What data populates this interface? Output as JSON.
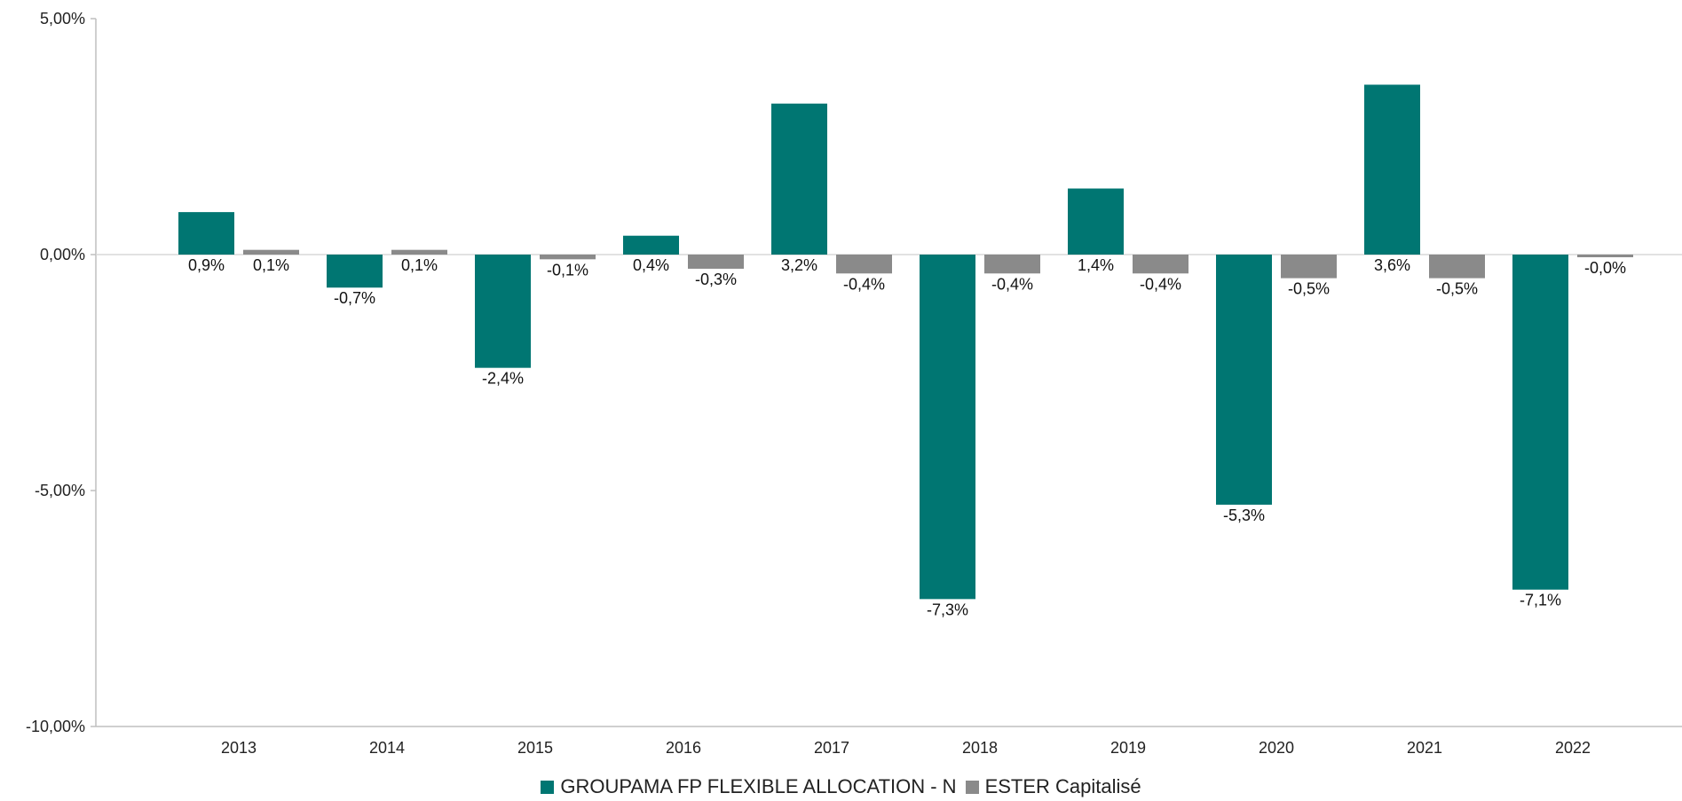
{
  "chart_data": {
    "type": "bar",
    "categories": [
      "2013",
      "2014",
      "2015",
      "2016",
      "2017",
      "2018",
      "2019",
      "2020",
      "2021",
      "2022"
    ],
    "series": [
      {
        "name": "GROUPAMA FP FLEXIBLE ALLOCATION - N",
        "color": "#007672",
        "values": [
          0.9,
          -0.7,
          -2.4,
          0.4,
          3.2,
          -7.3,
          1.4,
          -5.3,
          3.6,
          -7.1
        ],
        "labels": [
          "0,9%",
          "-0,7%",
          "-2,4%",
          "0,4%",
          "3,2%",
          "-7,3%",
          "1,4%",
          "-5,3%",
          "3,6%",
          "-7,1%"
        ]
      },
      {
        "name": "ESTER Capitalisé",
        "color": "#8a8a8a",
        "values": [
          0.1,
          0.1,
          -0.1,
          -0.3,
          -0.4,
          -0.4,
          -0.4,
          -0.5,
          -0.5,
          -0.02
        ],
        "labels": [
          "0,1%",
          "0,1%",
          "-0,1%",
          "-0,3%",
          "-0,4%",
          "-0,4%",
          "-0,4%",
          "-0,5%",
          "-0,5%",
          "-0,0%"
        ]
      }
    ],
    "yticks": [
      5,
      0,
      -5,
      -10
    ],
    "ytick_labels": [
      "5,00%",
      "0,00%",
      "-5,00%",
      "-10,00%"
    ],
    "ylim": [
      -10,
      5
    ],
    "grid": false,
    "legend_position": "bottom"
  }
}
